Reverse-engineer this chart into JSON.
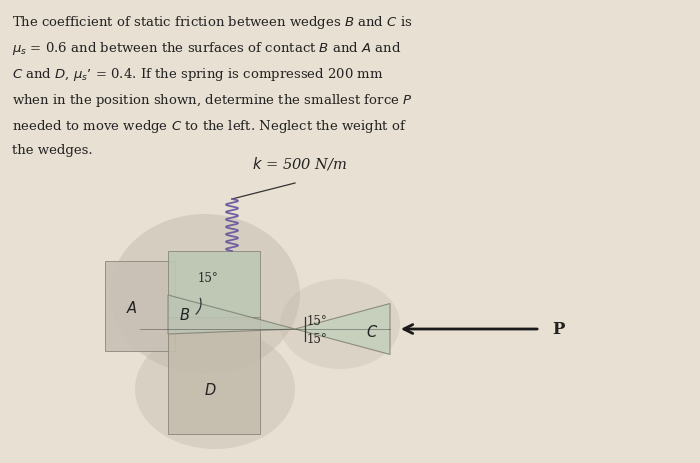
{
  "bg_color": "#e8e0d2",
  "text_color": "#222222",
  "fig_width": 7.0,
  "fig_height": 4.64,
  "title_lines": [
    "The coefficient of static friction between wedges $B$ and $C$ is",
    "$\\mu_s$ = 0.6 and between the surfaces of contact $B$ and $A$ and",
    "$C$ and $D$, $\\mu_s$’ = 0.4. If the spring is compressed 200 mm",
    "when in the position shown, determine the smallest force $P$",
    "needed to move wedge $C$ to the left. Neglect the weight of",
    "the wedges."
  ],
  "k_label": "$k$ = 500 N/m",
  "P_label": "P",
  "label_A": "$A$",
  "label_B": "$B$",
  "label_C": "$C$",
  "label_D": "$D$",
  "angle_label": "15°",
  "shadow_color": "#c0b8aa",
  "block_A_color": "#c8c0b4",
  "block_B_color": "#bcc8b4",
  "block_D_color": "#c4bcac",
  "wedge_C_color": "#c4d0bc",
  "wedge_B_fill": "#bcc4b4",
  "spring_color": "#7060a0",
  "edge_color": "#808070",
  "arrow_color": "#1a1a1a"
}
